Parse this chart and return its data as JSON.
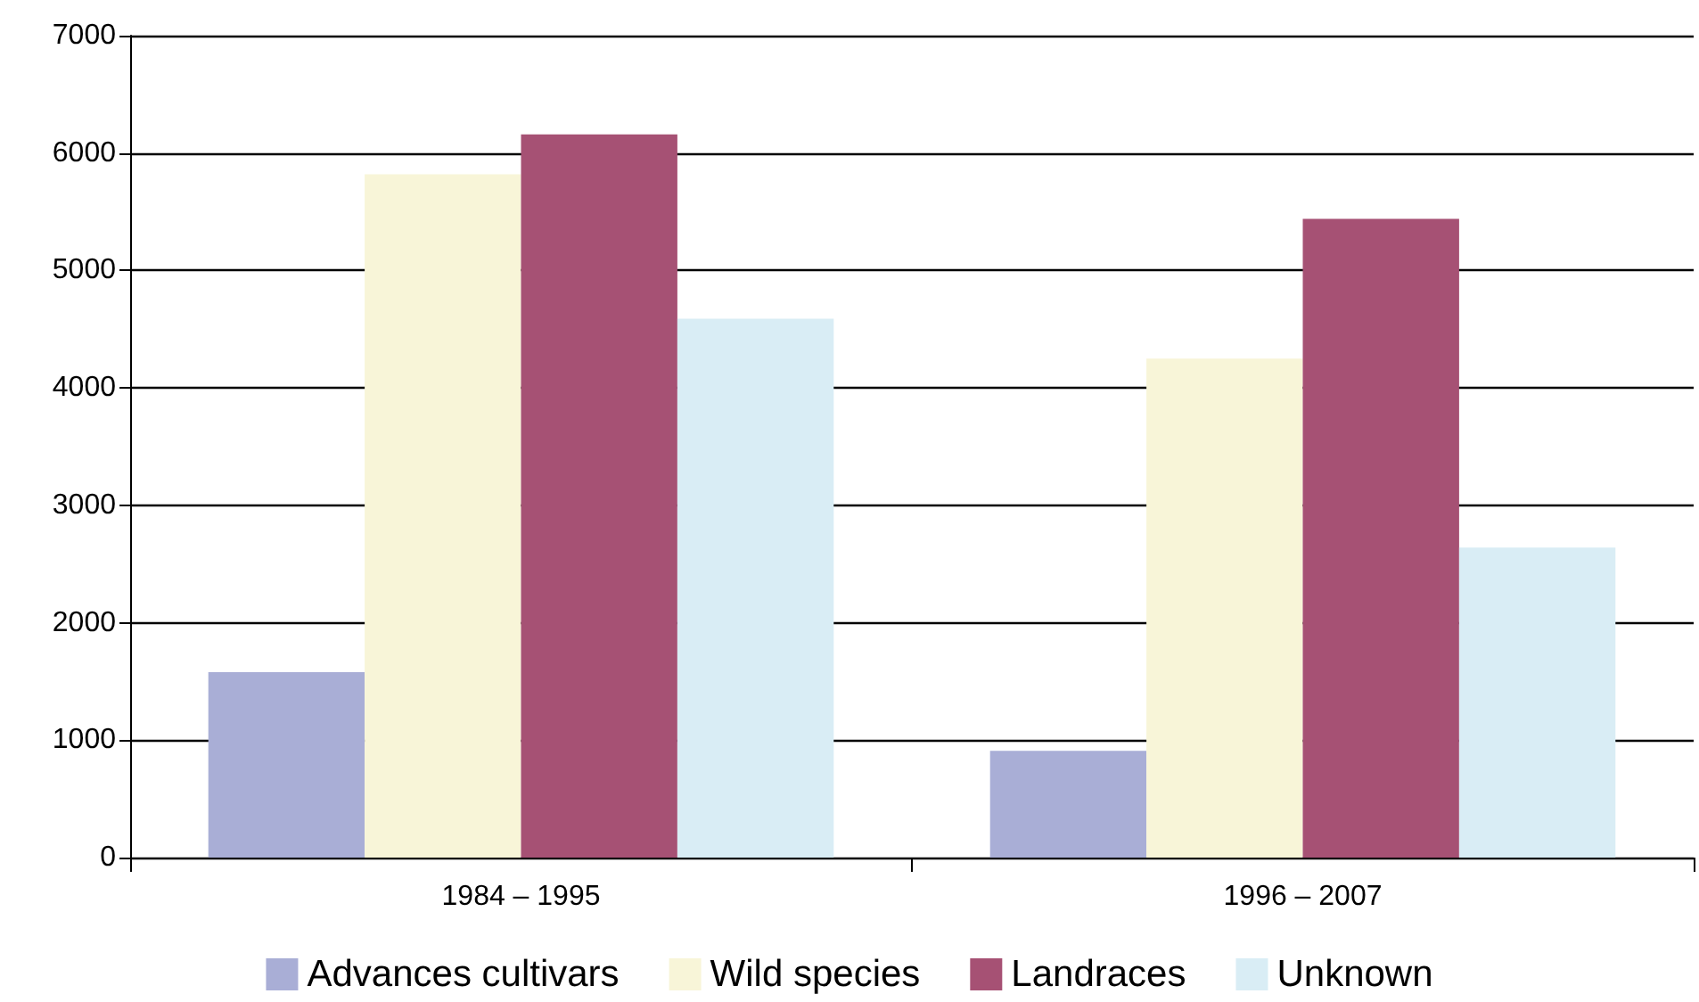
{
  "chart_data": {
    "type": "bar",
    "categories": [
      "1984 – 1995",
      "1996 – 2007"
    ],
    "series": [
      {
        "name": "Advances cultivars",
        "color": "#a9aed6",
        "values": [
          1580,
          910
        ]
      },
      {
        "name": "Wild species",
        "color": "#f8f5d8",
        "values": [
          5820,
          4250
        ]
      },
      {
        "name": "Landraces",
        "color": "#a65174",
        "values": [
          6160,
          5440
        ]
      },
      {
        "name": "Unknown",
        "color": "#d9edf5",
        "values": [
          4590,
          2640
        ]
      }
    ],
    "ylim": [
      0,
      7000
    ],
    "yticks": [
      0,
      1000,
      2000,
      3000,
      4000,
      5000,
      6000,
      7000
    ],
    "grid": "y",
    "legend": "bottom"
  }
}
